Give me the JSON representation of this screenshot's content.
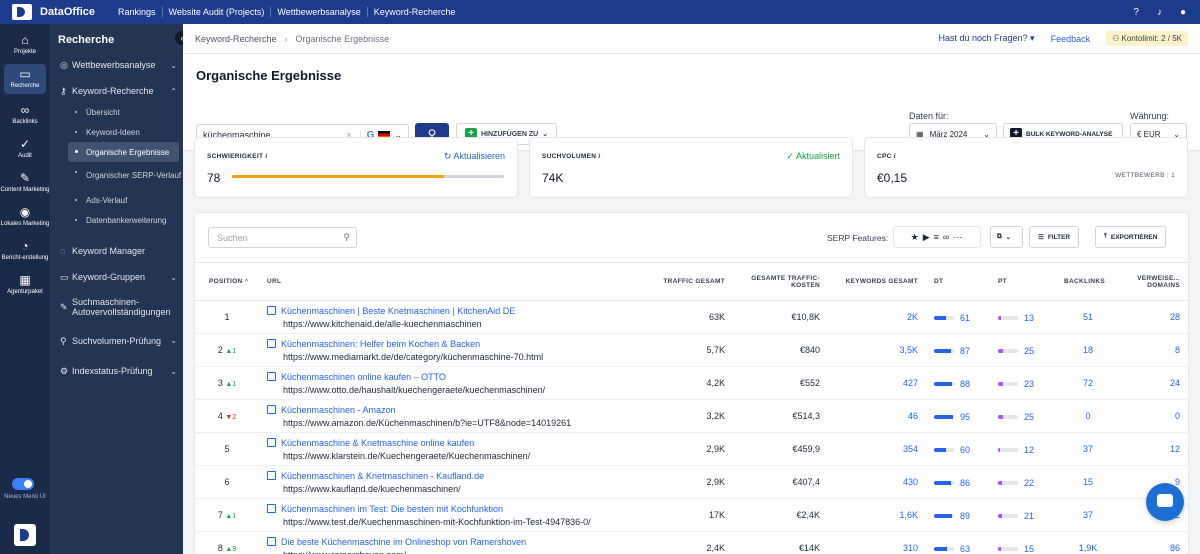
{
  "topbar": {
    "brand": "DataOffice",
    "nav": [
      "Rankings",
      "Website Audit (Projects)",
      "Wettbewerbsanalyse",
      "Keyword-Recherche"
    ]
  },
  "rail": [
    {
      "label": "Projekte",
      "icon": "home-icon"
    },
    {
      "label": "Recherche",
      "icon": "monitor-icon"
    },
    {
      "label": "Backlinks",
      "icon": "link-icon"
    },
    {
      "label": "Audit",
      "icon": "check-circle-icon"
    },
    {
      "label": "Content Marketing",
      "icon": "pen-icon"
    },
    {
      "label": "Lokales Marketing",
      "icon": "pin-icon"
    },
    {
      "label": "Bericht-erstellung",
      "icon": "chart-icon"
    },
    {
      "label": "Agenturpaket",
      "icon": "building-icon"
    }
  ],
  "rail_toggle_label": "Neues Menü UI",
  "sidebar": {
    "title": "Recherche",
    "wettbewerb": "Wettbewerbsanalyse",
    "keyword": "Keyword-Recherche",
    "subs": [
      "Übersicht",
      "Keyword-Ideen",
      "Organische Ergebnisse",
      "Organischer SERP-Verlauf",
      "Ads-Verlauf",
      "Datenbankerweiterung"
    ],
    "groups": [
      "Keyword Manager",
      "Keyword-Gruppen",
      "Suchmaschinen-Autovervollständigungen",
      "Suchvolumen-Prüfung",
      "Indexstatus-Prüfung"
    ]
  },
  "breadcrumb": {
    "parent": "Keyword-Recherche",
    "current": "Organische Ergebnisse",
    "questions": "Hast du noch Fragen?",
    "feedback": "Feedback",
    "limit": "Kontolimit: 2 / 5K"
  },
  "page": {
    "title": "Organische Ergebnisse",
    "search_value": "küchenmaschine",
    "add_label": "HINZUFÜGEN ZU",
    "date_label": "Daten für:",
    "date_value": "März 2024",
    "bulk_label": "BULK KEYWORD-ANALYSE",
    "currency_label": "Währung:",
    "currency_value": "€ EUR"
  },
  "cards": {
    "difficulty": {
      "title": "SCHWIERIGKEIT",
      "value": "78",
      "action": "Aktualisieren",
      "fill_percent": 78
    },
    "volume": {
      "title": "SUCHVOLUMEN",
      "value": "74K",
      "status": "Aktualisiert"
    },
    "cpc": {
      "title": "CPC",
      "value": "€0,15",
      "competition": "WETTBEWERB : 1"
    }
  },
  "table": {
    "search_placeholder": "Suchen",
    "serp_label": "SERP Features:",
    "filter_label": "FILTER",
    "export_label": "EXPORTIEREN",
    "headers": [
      "POSITION",
      "URL",
      "TRAFFIC GESAMT",
      "GESAMTE TRAFFIC-KOSTEN",
      "KEYWORDS GESAMT",
      "DT",
      "PT",
      "BACKLINKS",
      "VERWEISE... DOMAINS"
    ],
    "rows": [
      {
        "pos": "1",
        "chg": "",
        "dir": "",
        "title": "Küchenmaschinen | Beste Knetmaschinen | KitchenAid DE",
        "url": "https://www.kitchenaid.de/alle-kuechenmaschinen",
        "traffic": "63K",
        "cost": "€10,8K",
        "kw": "2K",
        "dt": "61",
        "pt": "13",
        "bl": "51",
        "rd": "28"
      },
      {
        "pos": "2",
        "chg": "1",
        "dir": "up",
        "title": "Küchenmaschinen: Helfer beim Kochen & Backen",
        "url": "https://www.mediamarkt.de/de/category/küchenmaschine-70.html",
        "traffic": "5,7K",
        "cost": "€840",
        "kw": "3,5K",
        "dt": "87",
        "pt": "25",
        "bl": "18",
        "rd": "8"
      },
      {
        "pos": "3",
        "chg": "1",
        "dir": "up",
        "title": "Küchenmaschinen online kaufen – OTTO",
        "url": "https://www.otto.de/haushalt/kuechengeraete/kuechenmaschinen/",
        "traffic": "4,2K",
        "cost": "€552",
        "kw": "427",
        "dt": "88",
        "pt": "23",
        "bl": "72",
        "rd": "24"
      },
      {
        "pos": "4",
        "chg": "2",
        "dir": "dn",
        "title": "Küchenmaschinen - Amazon",
        "url": "https://www.amazon.de/Küchenmaschinen/b?ie=UTF8&node=14019261",
        "traffic": "3,2K",
        "cost": "€514,3",
        "kw": "46",
        "dt": "95",
        "pt": "25",
        "bl": "0",
        "rd": "0"
      },
      {
        "pos": "5",
        "chg": "",
        "dir": "",
        "title": "Küchenmaschine & Knetmaschine online kaufen",
        "url": "https://www.klarstein.de/Kuechengeraete/Kuechenmaschinen/",
        "traffic": "2,9K",
        "cost": "€459,9",
        "kw": "354",
        "dt": "60",
        "pt": "12",
        "bl": "37",
        "rd": "12"
      },
      {
        "pos": "6",
        "chg": "",
        "dir": "",
        "title": "Küchenmaschinen & Knetmaschinen - Kaufland.de",
        "url": "https://www.kaufland.de/kuechenmaschinen/",
        "traffic": "2,9K",
        "cost": "€407,4",
        "kw": "430",
        "dt": "86",
        "pt": "22",
        "bl": "15",
        "rd": "9"
      },
      {
        "pos": "7",
        "chg": "1",
        "dir": "up",
        "title": "Küchenmaschinen im Test: Die besten mit Kochfunktion",
        "url": "https://www.test.de/Kuechenmaschinen-mit-Kochfunktion-im-Test-4947836-0/",
        "traffic": "17K",
        "cost": "€2,4K",
        "kw": "1,6K",
        "dt": "89",
        "pt": "21",
        "bl": "37",
        "rd": "12"
      },
      {
        "pos": "8",
        "chg": "9",
        "dir": "up",
        "title": "Die beste Küchenmaschine im Onlineshop von Ramershoven",
        "url": "https://www.ramershoven.com/",
        "traffic": "2,4K",
        "cost": "€14K",
        "kw": "310",
        "dt": "63",
        "pt": "15",
        "bl": "1,9K",
        "rd": "86"
      }
    ]
  }
}
